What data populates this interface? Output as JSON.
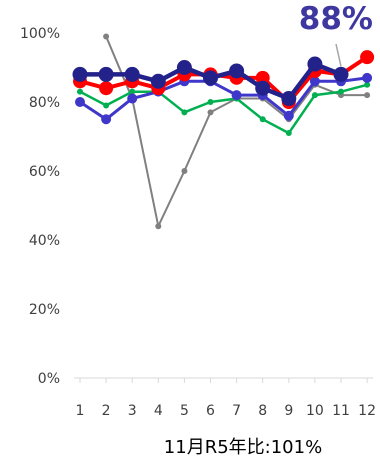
{
  "chart_data": {
    "type": "line",
    "categories": [
      "1",
      "2",
      "3",
      "4",
      "5",
      "6",
      "7",
      "8",
      "9",
      "10",
      "11",
      "12"
    ],
    "y_tick_labels": [
      "0%",
      "20%",
      "40%",
      "60%",
      "80%",
      "100%"
    ],
    "ylim": [
      0,
      100
    ],
    "grid": false,
    "series": [
      {
        "color": "#808080",
        "values": [
          null,
          99,
          81,
          44,
          60,
          77,
          81,
          81,
          75,
          85,
          82,
          82
        ]
      },
      {
        "color": "#00B050",
        "values": [
          83,
          79,
          83,
          83,
          77,
          80,
          81,
          75,
          71,
          82,
          83,
          85
        ]
      },
      {
        "color": "#3F37C9",
        "values": [
          80,
          75,
          81,
          83,
          86,
          86,
          82,
          82,
          76,
          86,
          86,
          87
        ]
      },
      {
        "color": "#FF0000",
        "values": [
          86,
          84,
          86,
          84,
          88,
          88,
          87,
          87,
          80,
          89,
          88,
          93
        ]
      },
      {
        "color": "#23228A",
        "values": [
          88,
          88,
          88,
          86,
          90,
          87,
          89,
          84,
          81,
          91,
          88,
          null
        ]
      }
    ],
    "callout": {
      "text": "88%",
      "color": "#3F37A0"
    },
    "footer_label": "11月R5年比:101%"
  }
}
